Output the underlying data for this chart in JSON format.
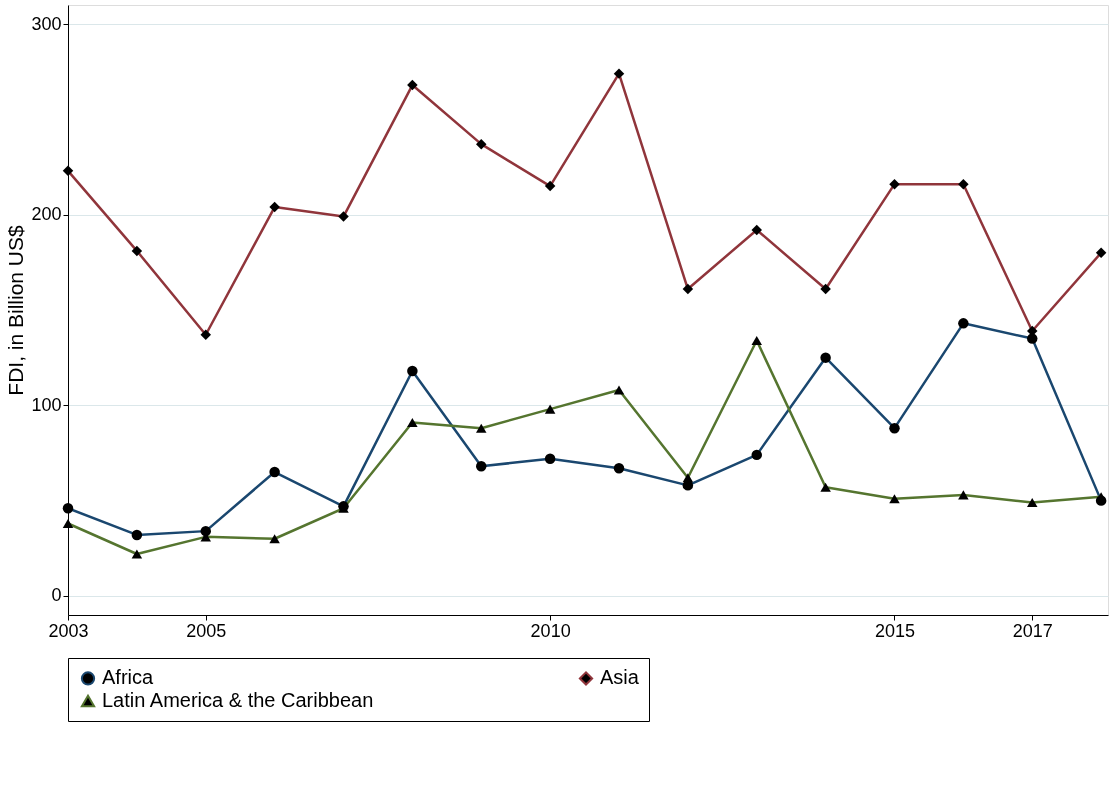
{
  "chart_data": {
    "type": "line",
    "ylabel": "FDI, in Billion US$",
    "x": [
      2003,
      2004,
      2005,
      2006,
      2007,
      2008,
      2009,
      2010,
      2011,
      2012,
      2013,
      2014,
      2015,
      2016,
      2017,
      2018
    ],
    "series": [
      {
        "name": "Africa",
        "color": "#1a476f",
        "marker": "circle",
        "values": [
          46,
          32,
          34,
          65,
          47,
          118,
          68,
          72,
          67,
          58,
          74,
          125,
          88,
          143,
          135,
          50
        ]
      },
      {
        "name": "Asia",
        "color": "#90353b",
        "marker": "diamond",
        "values": [
          223,
          181,
          137,
          204,
          199,
          268,
          237,
          215,
          274,
          161,
          192,
          161,
          216,
          216,
          139,
          180
        ]
      },
      {
        "name": "Latin America & the Caribbean",
        "color": "#55752f",
        "marker": "triangle",
        "values": [
          38,
          22,
          31,
          30,
          46,
          91,
          88,
          98,
          108,
          62,
          134,
          57,
          51,
          53,
          49,
          52
        ]
      }
    ],
    "xlim": [
      2003,
      2018.1
    ],
    "xticks": [
      2003,
      2005,
      2010,
      2015,
      2017
    ],
    "ylim": [
      -10,
      310
    ],
    "yticks": [
      0,
      100,
      200,
      300
    ],
    "grid": "y",
    "legend": "bottom",
    "line_style": "solid"
  }
}
